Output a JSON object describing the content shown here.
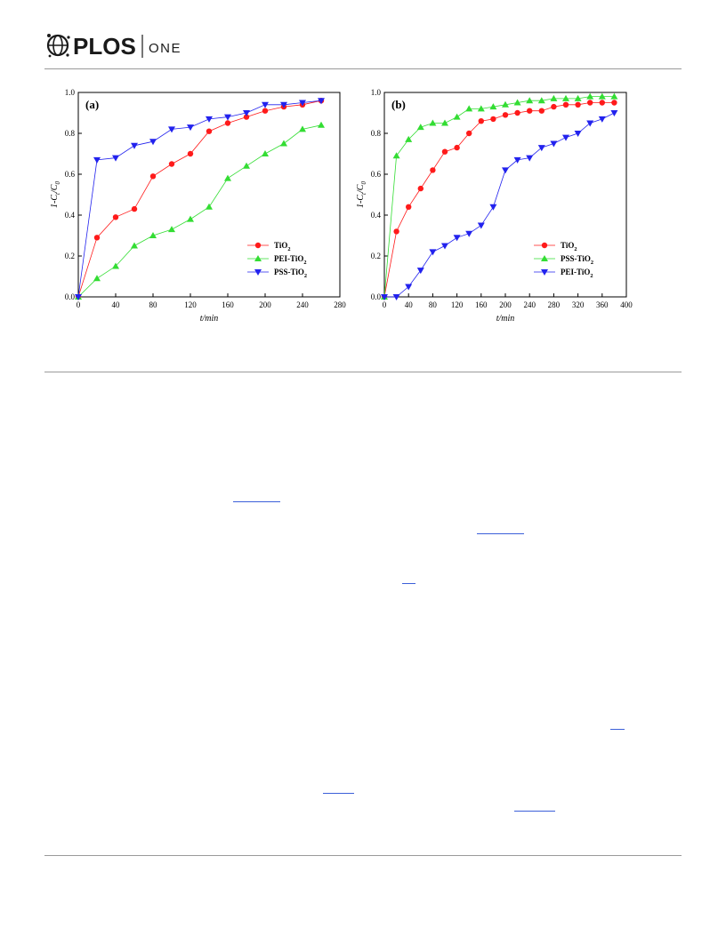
{
  "header": {
    "brand": "PLOS",
    "journal": "ONE",
    "brand_color": "#1a1a1a"
  },
  "chart_data": [
    {
      "type": "line",
      "panel_label": "(a)",
      "xlabel": "t/min",
      "ylabel": "1-Ct/C0",
      "xlim": [
        0,
        280
      ],
      "ylim": [
        0,
        1.0
      ],
      "xticks": [
        0,
        40,
        80,
        120,
        160,
        200,
        240,
        280
      ],
      "yticks": [
        0.0,
        0.2,
        0.4,
        0.6,
        0.8,
        1.0
      ],
      "legend_position": "bottom-right",
      "series": [
        {
          "name": "TiO2",
          "marker": "circle",
          "color": "#ff1a1a",
          "x": [
            0,
            20,
            40,
            60,
            80,
            100,
            120,
            140,
            160,
            180,
            200,
            220,
            240,
            260
          ],
          "y": [
            0.0,
            0.29,
            0.39,
            0.43,
            0.59,
            0.65,
            0.7,
            0.81,
            0.85,
            0.88,
            0.91,
            0.93,
            0.94,
            0.96
          ]
        },
        {
          "name": "PEI-TiO2",
          "marker": "triangle-up",
          "color": "#33dd33",
          "x": [
            0,
            20,
            40,
            60,
            80,
            100,
            120,
            140,
            160,
            180,
            200,
            220,
            240,
            260
          ],
          "y": [
            0.0,
            0.09,
            0.15,
            0.25,
            0.3,
            0.33,
            0.38,
            0.44,
            0.58,
            0.64,
            0.7,
            0.75,
            0.82,
            0.84
          ]
        },
        {
          "name": "PSS-TiO2",
          "marker": "triangle-down",
          "color": "#2222ee",
          "x": [
            0,
            20,
            40,
            60,
            80,
            100,
            120,
            140,
            160,
            180,
            200,
            220,
            240,
            260
          ],
          "y": [
            0.0,
            0.67,
            0.68,
            0.74,
            0.76,
            0.82,
            0.83,
            0.87,
            0.88,
            0.9,
            0.94,
            0.94,
            0.95,
            0.96
          ]
        }
      ]
    },
    {
      "type": "line",
      "panel_label": "(b)",
      "xlabel": "t/min",
      "ylabel": "1-Ct/C0",
      "xlim": [
        0,
        400
      ],
      "ylim": [
        0,
        1.0
      ],
      "xticks": [
        0,
        40,
        80,
        120,
        160,
        200,
        240,
        280,
        320,
        360,
        400
      ],
      "yticks": [
        0.0,
        0.2,
        0.4,
        0.6,
        0.8,
        1.0
      ],
      "legend_position": "bottom-right",
      "series": [
        {
          "name": "TiO2",
          "marker": "circle",
          "color": "#ff1a1a",
          "x": [
            0,
            20,
            40,
            60,
            80,
            100,
            120,
            140,
            160,
            180,
            200,
            220,
            240,
            260,
            280,
            300,
            320,
            340,
            360,
            380
          ],
          "y": [
            0.0,
            0.32,
            0.44,
            0.53,
            0.62,
            0.71,
            0.73,
            0.8,
            0.86,
            0.87,
            0.89,
            0.9,
            0.91,
            0.91,
            0.93,
            0.94,
            0.94,
            0.95,
            0.95,
            0.95
          ]
        },
        {
          "name": "PSS-TiO2",
          "marker": "triangle-up",
          "color": "#33dd33",
          "x": [
            0,
            20,
            40,
            60,
            80,
            100,
            120,
            140,
            160,
            180,
            200,
            220,
            240,
            260,
            280,
            300,
            320,
            340,
            360,
            380
          ],
          "y": [
            0.0,
            0.69,
            0.77,
            0.83,
            0.85,
            0.85,
            0.88,
            0.92,
            0.92,
            0.93,
            0.94,
            0.95,
            0.96,
            0.96,
            0.97,
            0.97,
            0.97,
            0.98,
            0.98,
            0.98
          ]
        },
        {
          "name": "PEI-TiO2",
          "marker": "triangle-down",
          "color": "#2222ee",
          "x": [
            0,
            20,
            40,
            60,
            80,
            100,
            120,
            140,
            160,
            180,
            200,
            220,
            240,
            260,
            280,
            300,
            320,
            340,
            360,
            380
          ],
          "y": [
            0.0,
            0.0,
            0.05,
            0.13,
            0.22,
            0.25,
            0.29,
            0.31,
            0.35,
            0.44,
            0.62,
            0.67,
            0.68,
            0.73,
            0.75,
            0.78,
            0.8,
            0.85,
            0.87,
            0.9
          ]
        }
      ]
    }
  ]
}
